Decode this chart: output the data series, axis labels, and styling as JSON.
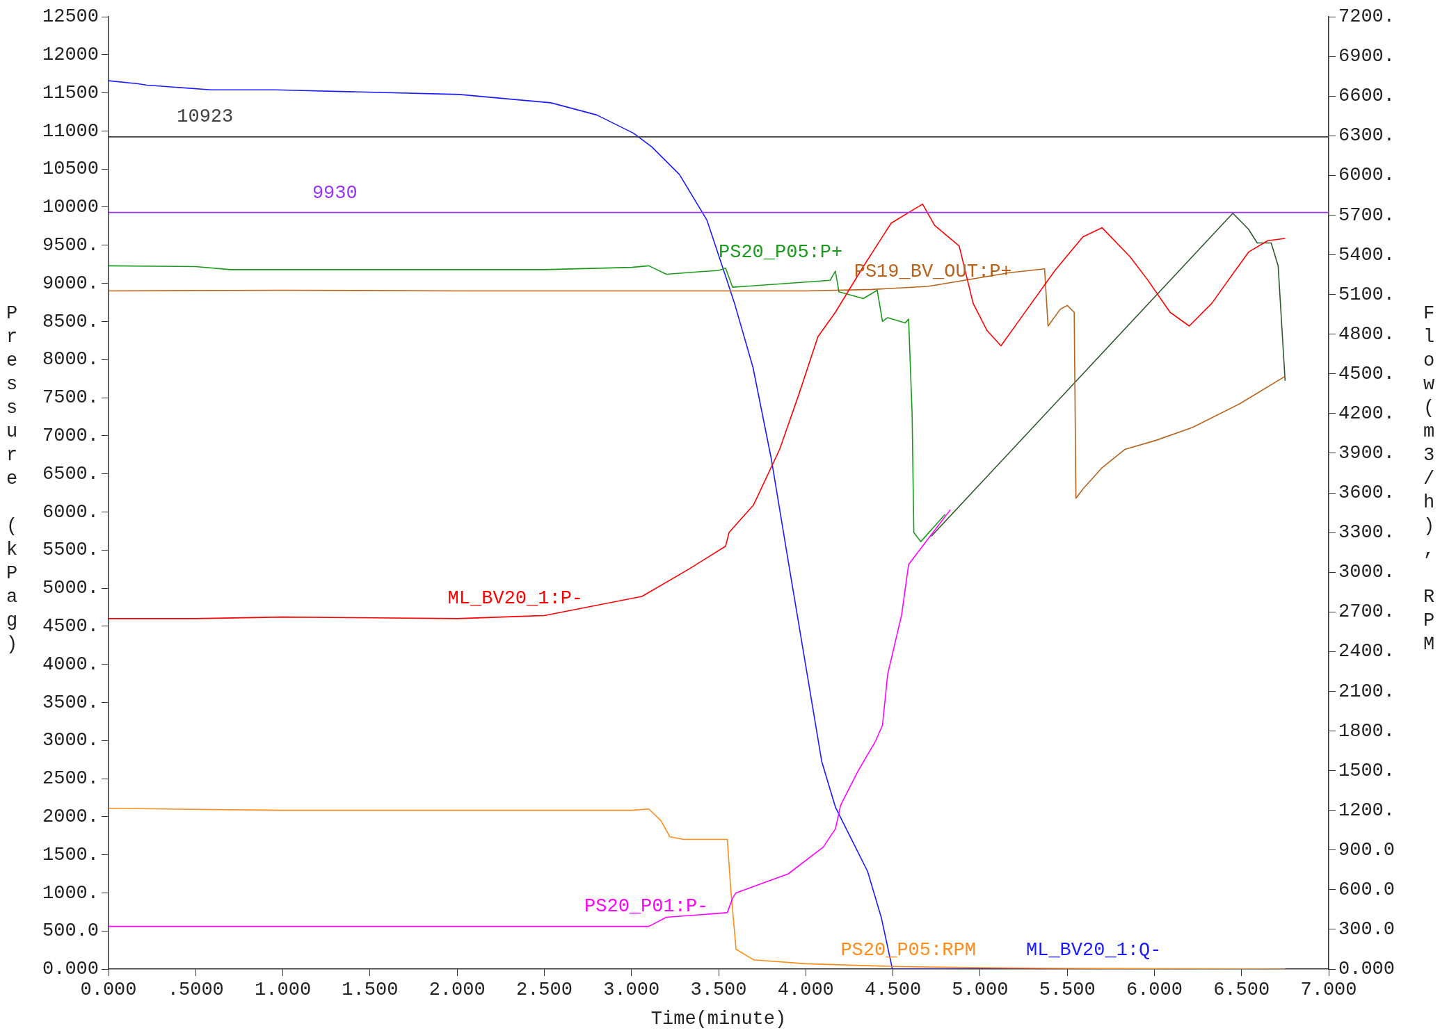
{
  "chart_data": {
    "type": "line",
    "xlabel": "Time(minute)",
    "ylabel": "Pressure (kPag)",
    "y2label": "Flow(m3/h), RPM",
    "xlim": [
      0,
      7
    ],
    "xticks": [
      {
        "value": 0,
        "label": "0.000"
      },
      {
        "value": 0.5,
        "label": ".5000"
      },
      {
        "value": 1,
        "label": "1.000"
      },
      {
        "value": 1.5,
        "label": "1.500"
      },
      {
        "value": 2,
        "label": "2.000"
      },
      {
        "value": 2.5,
        "label": "2.500"
      },
      {
        "value": 3,
        "label": "3.000"
      },
      {
        "value": 3.5,
        "label": "3.500"
      },
      {
        "value": 4,
        "label": "4.000"
      },
      {
        "value": 4.5,
        "label": "4.500"
      },
      {
        "value": 5,
        "label": "5.000"
      },
      {
        "value": 5.5,
        "label": "5.500"
      },
      {
        "value": 6,
        "label": "6.000"
      },
      {
        "value": 6.5,
        "label": "6.500"
      },
      {
        "value": 7,
        "label": "7.000"
      }
    ],
    "ylim": [
      0,
      12500
    ],
    "yticks": [
      {
        "value": 0,
        "label": "0.000"
      },
      {
        "value": 500,
        "label": "500.0"
      },
      {
        "value": 1000,
        "label": "1000."
      },
      {
        "value": 1500,
        "label": "1500."
      },
      {
        "value": 2000,
        "label": "2000."
      },
      {
        "value": 2500,
        "label": "2500."
      },
      {
        "value": 3000,
        "label": "3000."
      },
      {
        "value": 3500,
        "label": "3500."
      },
      {
        "value": 4000,
        "label": "4000."
      },
      {
        "value": 4500,
        "label": "4500."
      },
      {
        "value": 5000,
        "label": "5000."
      },
      {
        "value": 5500,
        "label": "5500."
      },
      {
        "value": 6000,
        "label": "6000."
      },
      {
        "value": 6500,
        "label": "6500."
      },
      {
        "value": 7000,
        "label": "7000."
      },
      {
        "value": 7500,
        "label": "7500."
      },
      {
        "value": 8000,
        "label": "8000."
      },
      {
        "value": 8500,
        "label": "8500."
      },
      {
        "value": 9000,
        "label": "9000."
      },
      {
        "value": 9500,
        "label": "9500."
      },
      10000,
      10500,
      11000,
      11500,
      12000,
      12500
    ],
    "y2lim": [
      0,
      7200
    ],
    "y2ticks": [
      {
        "value": 0,
        "label": "0.000"
      },
      {
        "value": 300,
        "label": "300.0"
      },
      {
        "value": 600,
        "label": "600.0"
      },
      {
        "value": 900,
        "label": "900.0"
      },
      {
        "value": 1200,
        "label": "1200."
      },
      {
        "value": 1500,
        "label": "1500."
      },
      {
        "value": 1800,
        "label": "1800."
      },
      {
        "value": 2100,
        "label": "2100."
      },
      {
        "value": 2400,
        "label": "2400."
      },
      {
        "value": 2700,
        "label": "2700."
      },
      {
        "value": 3000,
        "label": "3000."
      },
      {
        "value": 3300,
        "label": "3300."
      },
      {
        "value": 3600,
        "label": "3600."
      },
      {
        "value": 3900,
        "label": "3900."
      },
      {
        "value": 4200,
        "label": "4200."
      },
      {
        "value": 4500,
        "label": "4500."
      },
      {
        "value": 4800,
        "label": "4800."
      },
      {
        "value": 5100,
        "label": "5100."
      },
      {
        "value": 5400,
        "label": "5400."
      },
      {
        "value": 5700,
        "label": "5700."
      },
      {
        "value": 6000,
        "label": "6000."
      },
      {
        "value": 6300,
        "label": "6300."
      },
      {
        "value": 6600,
        "label": "6600."
      },
      {
        "value": 6900,
        "label": "6900."
      },
      {
        "value": 7200,
        "label": "7200."
      }
    ],
    "grid": false,
    "legend": false,
    "ref_lines": [
      {
        "axis": "y",
        "value": 10923,
        "label": "10923",
        "color": "#404040"
      },
      {
        "axis": "y",
        "value": 9930,
        "label": "9930",
        "color": "#9933ff"
      }
    ],
    "series": [
      {
        "name": "ML_BV20_1:P-",
        "color": "#ff0000",
        "x": [
          0,
          0.5,
          1,
          2,
          2.5,
          3.06,
          3.33,
          3.54,
          3.56,
          3.7,
          3.85,
          3.96,
          4.07,
          4.17,
          4.33,
          4.49,
          4.67,
          4.74,
          4.88,
          4.96,
          5.04,
          5.12,
          5.22,
          5.43,
          5.59,
          5.7,
          5.86,
          5.96,
          6.09,
          6.2,
          6.33,
          6.54,
          6.65,
          6.75
        ],
        "values": [
          4600,
          4600,
          4620,
          4600,
          4640,
          4890,
          5250,
          5550,
          5730,
          6090,
          6820,
          7540,
          8300,
          8620,
          9220,
          9790,
          10040,
          9760,
          9490,
          8740,
          8380,
          8180,
          8500,
          9170,
          9610,
          9730,
          9350,
          9050,
          8620,
          8440,
          8740,
          9410,
          9560,
          9590
        ]
      },
      {
        "name": "PS20_P05:P+",
        "color": "#1a9a1a",
        "x": [
          0,
          0.5,
          0.7,
          1.5,
          2.5,
          3.0,
          3.1,
          3.2,
          3.5,
          3.54,
          3.58,
          3.65,
          4.14,
          4.17,
          4.19,
          4.33,
          4.41,
          4.44,
          4.47,
          4.57,
          4.59,
          4.61,
          4.62,
          4.66,
          4.8
        ],
        "values": [
          9230,
          9220,
          9180,
          9180,
          9180,
          9210,
          9230,
          9120,
          9170,
          9200,
          8950,
          8960,
          9040,
          9160,
          8890,
          8800,
          8910,
          8500,
          8550,
          8480,
          8530,
          7300,
          5730,
          5610,
          5970
        ]
      },
      {
        "name": "PS19_BV_OUT:P+",
        "color": "#b8621b",
        "x": [
          0,
          1,
          2,
          3,
          4,
          4.38,
          4.7,
          4.91,
          5.17,
          5.37,
          5.39,
          5.46,
          5.5,
          5.54,
          5.55,
          5.59,
          5.7,
          5.83,
          6.01,
          6.22,
          6.49,
          6.75
        ],
        "values": [
          8900,
          8910,
          8900,
          8900,
          8900,
          8920,
          8960,
          9040,
          9140,
          9190,
          8440,
          8660,
          8710,
          8620,
          6180,
          6300,
          6580,
          6820,
          6940,
          7110,
          7420,
          7780
        ]
      },
      {
        "name": "PS20_P01:P-",
        "color": "#ff00ff",
        "x": [
          0,
          1,
          2,
          3.1,
          3.2,
          3.55,
          3.58,
          3.6,
          3.9,
          4.1,
          4.17,
          4.2,
          4.3,
          4.4,
          4.44,
          4.47,
          4.55,
          4.59,
          4.83
        ],
        "values": [
          560,
          560,
          560,
          560,
          680,
          740,
          930,
          1000,
          1250,
          1600,
          1840,
          2150,
          2600,
          2990,
          3200,
          3870,
          4650,
          5310,
          6030
        ]
      },
      {
        "name": "PS20_P05:RPM",
        "color": "#ff8c1a",
        "axis": "y2",
        "x": [
          0,
          1,
          3,
          3.1,
          3.17,
          3.22,
          3.3,
          3.55,
          3.57,
          3.6,
          3.7,
          4,
          4.5,
          5,
          5.5,
          6.75
        ],
        "values": [
          1215,
          1200,
          1200,
          1210,
          1120,
          1000,
          980,
          980,
          600,
          150,
          70,
          40,
          20,
          10,
          5,
          0
        ]
      },
      {
        "name": "ML_BV20_1:Q-",
        "color": "#1a1aff",
        "axis": "y2",
        "x": [
          0,
          0.169,
          0.221,
          0.59,
          0.958,
          2.012,
          2.538,
          2.801,
          3.012,
          3.117,
          3.275,
          3.433,
          3.539,
          3.591,
          3.697,
          3.802,
          3.907,
          4.013,
          4.092,
          4.171,
          4.276,
          4.355,
          4.434,
          4.497,
          6.75
        ],
        "values": [
          6716,
          6693,
          6682,
          6647,
          6647,
          6612,
          6549,
          6457,
          6319,
          6215,
          6008,
          5662,
          5242,
          5034,
          4550,
          3859,
          3024,
          2189,
          1567,
          1221,
          945,
          737,
          386,
          0,
          0
        ]
      },
      {
        "color": "#2d5a2d",
        "x": [
          4.72,
          6.45,
          6.54,
          6.59,
          6.67,
          6.71,
          6.75
        ],
        "values": [
          5680,
          9920,
          9710,
          9530,
          9530,
          9230,
          7720
        ]
      }
    ]
  }
}
